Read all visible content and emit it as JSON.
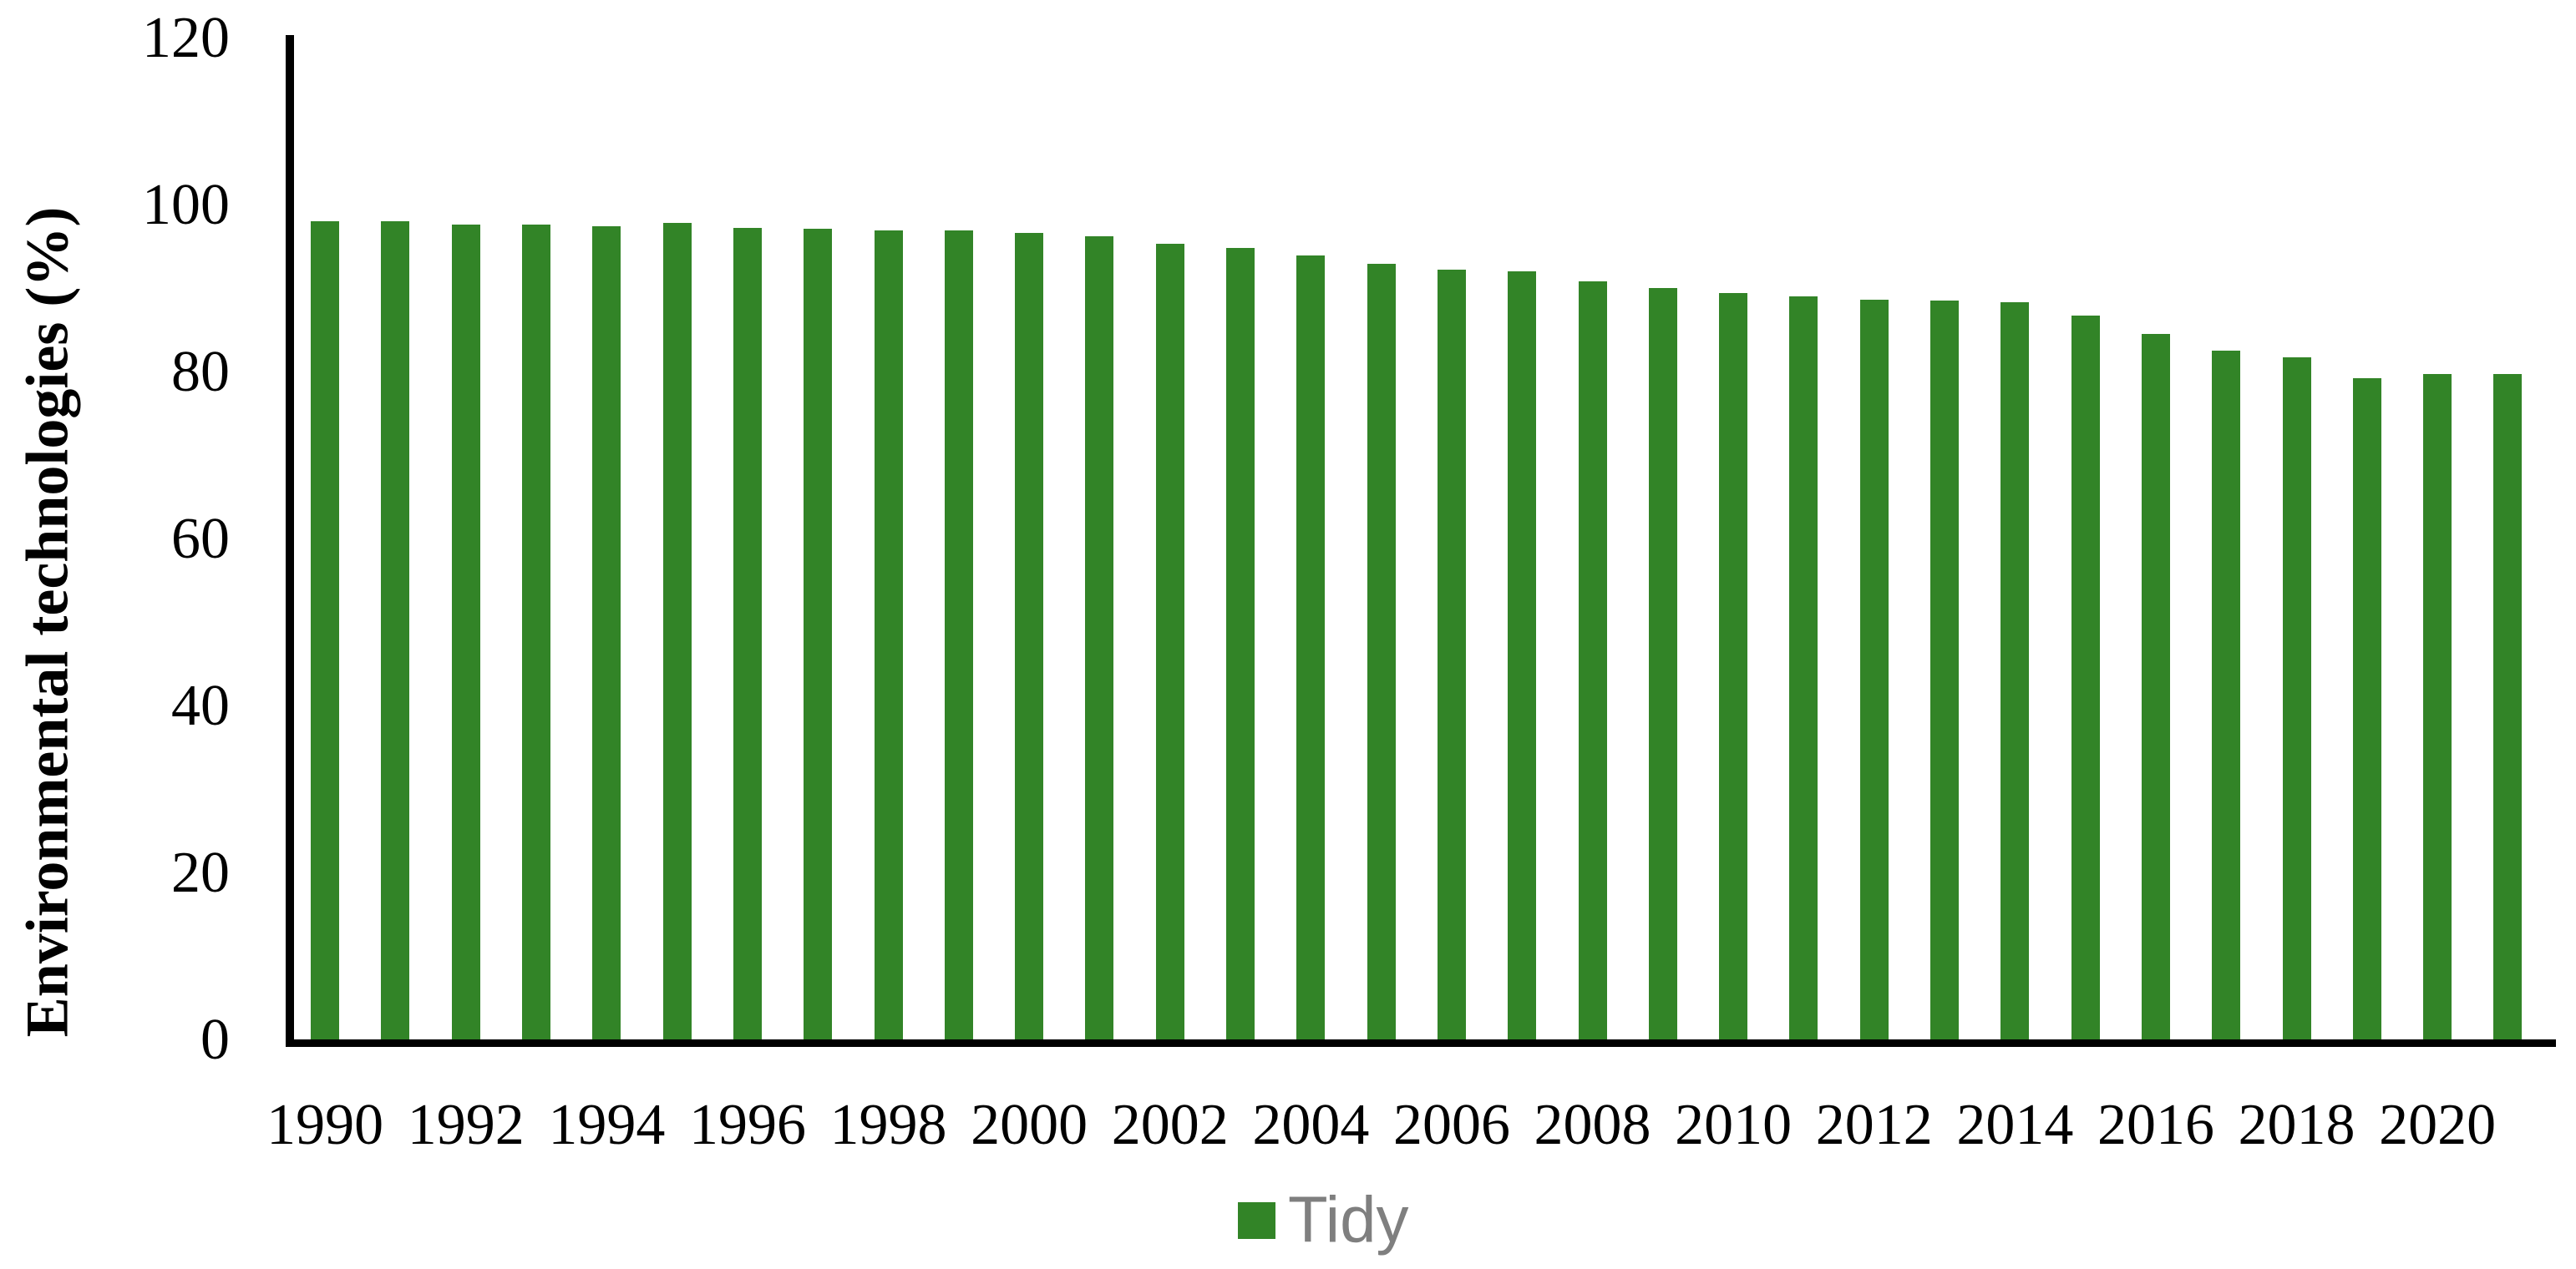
{
  "chart_data": {
    "type": "bar",
    "title": "",
    "xlabel": "",
    "ylabel": "Environmental technologies (%)",
    "ylim": [
      0,
      120
    ],
    "yticks": [
      0,
      20,
      40,
      60,
      80,
      100,
      120
    ],
    "grid": false,
    "categories": [
      1990,
      1991,
      1992,
      1993,
      1994,
      1995,
      1996,
      1997,
      1998,
      1999,
      2000,
      2001,
      2002,
      2003,
      2004,
      2005,
      2006,
      2007,
      2008,
      2009,
      2010,
      2011,
      2012,
      2013,
      2014,
      2015,
      2016,
      2017,
      2018,
      2019,
      2020,
      2021
    ],
    "x_tick_labels": [
      "1990",
      "1992",
      "1994",
      "1996",
      "1998",
      "2000",
      "2002",
      "2004",
      "2006",
      "2008",
      "2010",
      "2012",
      "2014",
      "2016",
      "2018",
      "2020"
    ],
    "series": [
      {
        "name": "Tidy",
        "values": [
          98.0,
          98.0,
          97.6,
          97.6,
          97.4,
          97.8,
          97.2,
          97.1,
          96.9,
          96.9,
          96.6,
          96.2,
          95.3,
          94.8,
          93.9,
          92.9,
          92.2,
          92.0,
          90.8,
          90.0,
          89.4,
          89.0,
          88.6,
          88.5,
          88.3,
          86.7,
          84.5,
          82.5,
          81.7,
          79.2,
          79.7,
          79.7
        ]
      }
    ],
    "legend": {
      "label": "Tidy",
      "position": "bottom"
    },
    "colors": {
      "bar": "#328427",
      "legend_text": "#7f7f7f",
      "axis": "#000000",
      "tick_text": "#000000",
      "background": "#ffffff"
    }
  }
}
